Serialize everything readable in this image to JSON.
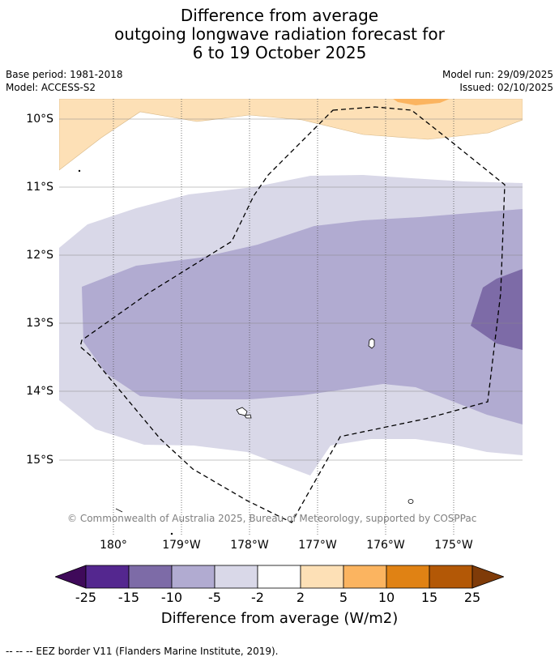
{
  "title": {
    "line1": "Difference from average",
    "line2": "outgoing longwave radiation forecast for",
    "line3": "6 to 19 October 2025"
  },
  "meta": {
    "base_period": "Base period: 1981-2018",
    "model": "Model: ACCESS-S2",
    "model_run": "Model run: 29/09/2025",
    "issued": "Issued: 02/10/2025"
  },
  "map": {
    "lat_labels": [
      "10°S",
      "11°S",
      "12°S",
      "13°S",
      "14°S",
      "15°S"
    ],
    "lon_labels": [
      "180°",
      "179°W",
      "178°W",
      "177°W",
      "176°W",
      "175°W"
    ],
    "copyright": "© Commonwealth of Australia 2025, Bureau of Meteorology, supported by COSPPac",
    "eez_label": "EEZ border V11"
  },
  "colorbar": {
    "ticks": [
      "-25",
      "-15",
      "-10",
      "-5",
      "-2",
      "2",
      "5",
      "10",
      "15",
      "25"
    ],
    "colors": [
      "#3f0a5a",
      "#54278f",
      "#7d6ba7",
      "#b1abd1",
      "#d9d8e8",
      "#ffffff",
      "#fde0b6",
      "#fbb460",
      "#e08214",
      "#b35806",
      "#7f3b08"
    ],
    "title": "Difference from average (W/m2)"
  },
  "footnote": "--  --  -- EEZ border V11 (Flanders Marine Institute, 2019)."
}
